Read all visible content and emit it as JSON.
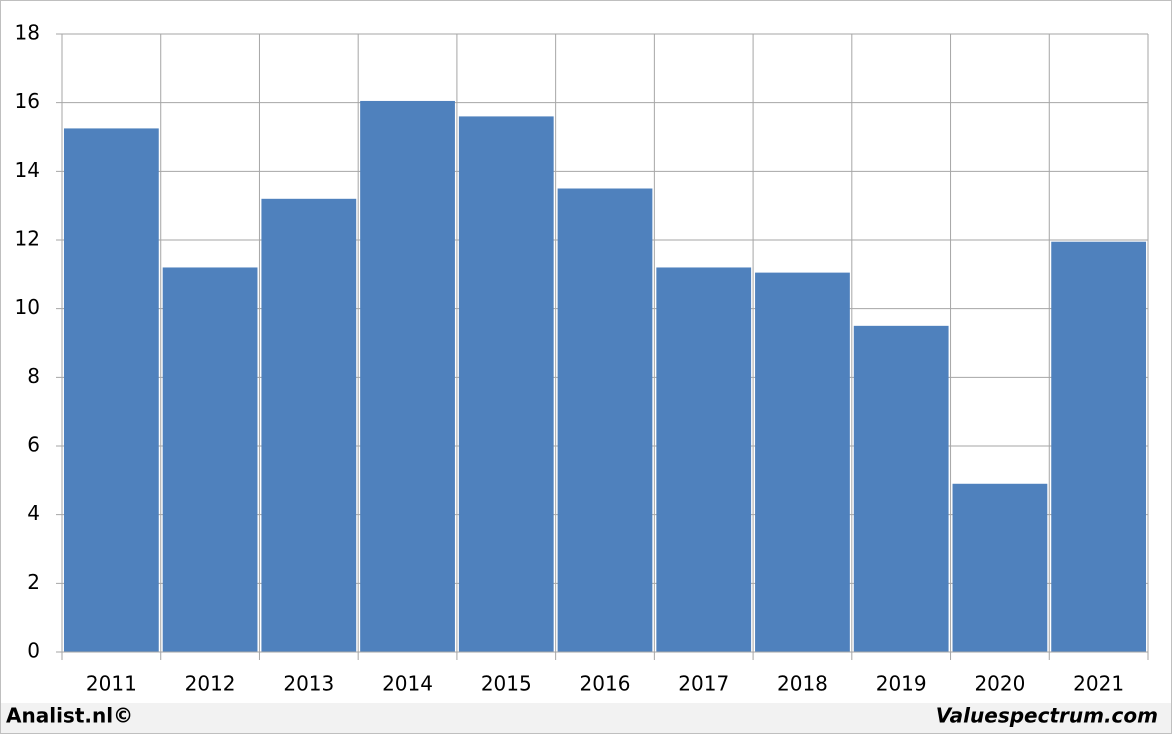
{
  "chart_data": {
    "type": "bar",
    "categories": [
      "2011",
      "2012",
      "2013",
      "2014",
      "2015",
      "2016",
      "2017",
      "2018",
      "2019",
      "2020",
      "2021"
    ],
    "values": [
      15.25,
      11.2,
      13.2,
      16.05,
      15.6,
      13.5,
      11.2,
      11.05,
      9.5,
      4.9,
      11.95
    ],
    "color": "#4f81bd",
    "ylim": [
      0,
      18
    ],
    "yticks": [
      0,
      2,
      4,
      6,
      8,
      10,
      12,
      14,
      16,
      18
    ],
    "grid": true
  },
  "footer": {
    "left": "Analist.nl©",
    "right": "Valuespectrum.com"
  }
}
